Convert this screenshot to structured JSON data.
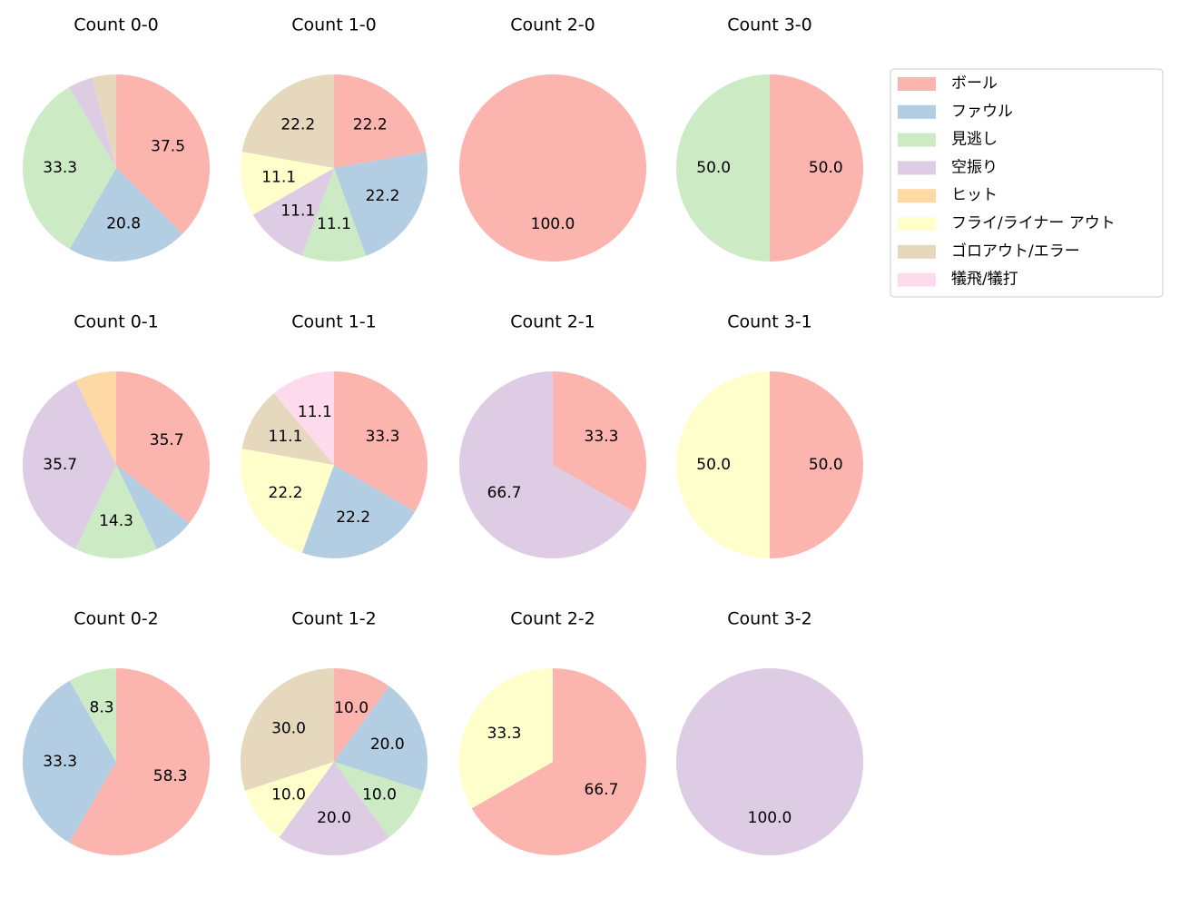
{
  "chart_data": [
    {
      "type": "pie",
      "title": "Count 0-0",
      "categories": [
        "ボール",
        "ファウル",
        "見逃し",
        "空振り",
        "ゴロアウト/エラー"
      ],
      "values": [
        37.5,
        20.8,
        33.3,
        4.2,
        4.2
      ],
      "value_labels": [
        "37.5",
        "20.8",
        "33.3",
        null,
        null
      ]
    },
    {
      "type": "pie",
      "title": "Count 1-0",
      "categories": [
        "ボール",
        "ファウル",
        "見逃し",
        "空振り",
        "フライ/ライナー アウト",
        "ゴロアウト/エラー"
      ],
      "values": [
        22.2,
        22.2,
        11.1,
        11.1,
        11.1,
        22.2
      ],
      "value_labels": [
        "22.2",
        "22.2",
        "11.1",
        "11.1",
        "11.1",
        "22.2"
      ]
    },
    {
      "type": "pie",
      "title": "Count 2-0",
      "categories": [
        "ボール"
      ],
      "values": [
        100
      ],
      "value_labels": [
        "100.0"
      ]
    },
    {
      "type": "pie",
      "title": "Count 3-0",
      "categories": [
        "ボール",
        "見逃し"
      ],
      "values": [
        50,
        50
      ],
      "value_labels": [
        "50.0",
        "50.0"
      ]
    },
    {
      "type": "pie",
      "title": "Count 0-1",
      "categories": [
        "ボール",
        "ファウル",
        "見逃し",
        "空振り",
        "ヒット"
      ],
      "values": [
        35.7,
        7.1,
        14.3,
        35.7,
        7.1
      ],
      "value_labels": [
        "35.7",
        null,
        "14.3",
        "35.7",
        null
      ]
    },
    {
      "type": "pie",
      "title": "Count 1-1",
      "categories": [
        "ボール",
        "ファウル",
        "フライ/ライナー アウト",
        "ゴロアウト/エラー",
        "犠飛/犠打"
      ],
      "values": [
        33.3,
        22.2,
        22.2,
        11.1,
        11.1
      ],
      "value_labels": [
        "33.3",
        "22.2",
        "22.2",
        "11.1",
        "11.1"
      ]
    },
    {
      "type": "pie",
      "title": "Count 2-1",
      "categories": [
        "ボール",
        "空振り"
      ],
      "values": [
        33.3,
        66.7
      ],
      "value_labels": [
        "33.3",
        "66.7"
      ]
    },
    {
      "type": "pie",
      "title": "Count 3-1",
      "categories": [
        "ボール",
        "フライ/ライナー アウト"
      ],
      "values": [
        50,
        50
      ],
      "value_labels": [
        "50.0",
        "50.0"
      ]
    },
    {
      "type": "pie",
      "title": "Count 0-2",
      "categories": [
        "ボール",
        "ファウル",
        "見逃し"
      ],
      "values": [
        58.3,
        33.3,
        8.3
      ],
      "value_labels": [
        "58.3",
        "33.3",
        "8.3"
      ]
    },
    {
      "type": "pie",
      "title": "Count 1-2",
      "categories": [
        "ボール",
        "ファウル",
        "見逃し",
        "空振り",
        "フライ/ライナー アウト",
        "ゴロアウト/エラー"
      ],
      "values": [
        10,
        20,
        10,
        20,
        10,
        30
      ],
      "value_labels": [
        "10.0",
        "20.0",
        "10.0",
        "20.0",
        "10.0",
        "30.0"
      ]
    },
    {
      "type": "pie",
      "title": "Count 2-2",
      "categories": [
        "ボール",
        "フライ/ライナー アウト"
      ],
      "values": [
        66.7,
        33.3
      ],
      "value_labels": [
        "66.7",
        "33.3"
      ]
    },
    {
      "type": "pie",
      "title": "Count 3-2",
      "categories": [
        "空振り"
      ],
      "values": [
        100
      ],
      "value_labels": [
        "100.0"
      ]
    }
  ],
  "legend": {
    "labels": [
      "ボール",
      "ファウル",
      "見逃し",
      "空振り",
      "ヒット",
      "フライ/ライナー アウト",
      "ゴロアウト/エラー",
      "犠飛/犠打"
    ],
    "colors": [
      "#fbb4ae",
      "#b3cde3",
      "#ccebc5",
      "#decbe4",
      "#fed9a6",
      "#ffffcc",
      "#e5d8bd",
      "#fddaec"
    ]
  }
}
